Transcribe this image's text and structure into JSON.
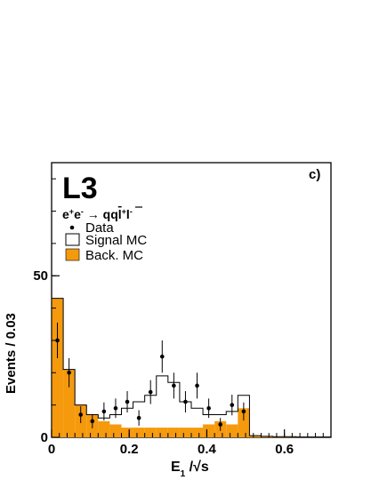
{
  "chart_data": {
    "type": "bar",
    "experiment_label": "L3",
    "panel_label": "c)",
    "process_label": {
      "text_parts": [
        "e",
        "+",
        "e",
        "-",
        " → q",
        "q",
        "l",
        "+",
        "l",
        "-"
      ]
    },
    "xlabel": {
      "main": "E",
      "sub": "1",
      "rest": " /√s"
    },
    "ylabel": "Events / 0.03",
    "xlim": [
      0,
      0.72
    ],
    "ylim": [
      0,
      85
    ],
    "x_ticks": [
      0,
      0.2,
      0.4,
      0.6
    ],
    "x_tick_labels": [
      "0",
      "0.2",
      "0.4",
      "0.6"
    ],
    "y_ticks": [
      0,
      50
    ],
    "y_tick_labels": [
      "0",
      "50"
    ],
    "bin_width": 0.03,
    "bin_edges": [
      0.0,
      0.03,
      0.06,
      0.09,
      0.12,
      0.15,
      0.18,
      0.21,
      0.24,
      0.27,
      0.3,
      0.33,
      0.36,
      0.39,
      0.42,
      0.45,
      0.48,
      0.51,
      0.54,
      0.57,
      0.6,
      0.63,
      0.66,
      0.69,
      0.72
    ],
    "legend": [
      {
        "name": "Data",
        "style": "marker"
      },
      {
        "name": "Signal MC",
        "style": "open-box"
      },
      {
        "name": "Back. MC",
        "style": "filled-box"
      }
    ],
    "colors": {
      "background_mc": "#f59a0d",
      "signal_mc": "#000000",
      "data": "#000000",
      "frame": "#000000"
    },
    "series": [
      {
        "name": "Back. MC",
        "kind": "filled-histogram",
        "values": [
          43,
          21,
          10,
          7,
          5,
          4,
          3,
          3,
          3,
          3,
          3,
          3,
          3,
          4,
          5,
          4,
          9,
          0.5,
          0.3,
          0.2,
          0.2,
          0.1,
          0.1,
          0.1
        ]
      },
      {
        "name": "Signal MC",
        "kind": "stacked-total-outline",
        "values": [
          43,
          21,
          10,
          7,
          6,
          7,
          9,
          11,
          13,
          19,
          17,
          11,
          9,
          7,
          7,
          8,
          13,
          0.5,
          0.3,
          0.2,
          0.2,
          0.1,
          0.1,
          0.1
        ]
      },
      {
        "name": "Data",
        "kind": "points-with-errors",
        "x": [
          0.015,
          0.045,
          0.075,
          0.105,
          0.135,
          0.165,
          0.195,
          0.225,
          0.255,
          0.285,
          0.315,
          0.345,
          0.375,
          0.405,
          0.435,
          0.465,
          0.495
        ],
        "y": [
          30,
          20,
          7,
          5,
          8,
          9,
          11,
          6,
          14,
          25,
          16,
          11,
          16,
          9,
          4,
          10,
          8
        ],
        "err": [
          5.5,
          4.5,
          2.6,
          2.2,
          2.8,
          3.0,
          3.3,
          2.4,
          3.7,
          5.0,
          4.0,
          3.3,
          4.0,
          3.0,
          2.0,
          3.2,
          2.8
        ]
      }
    ]
  }
}
